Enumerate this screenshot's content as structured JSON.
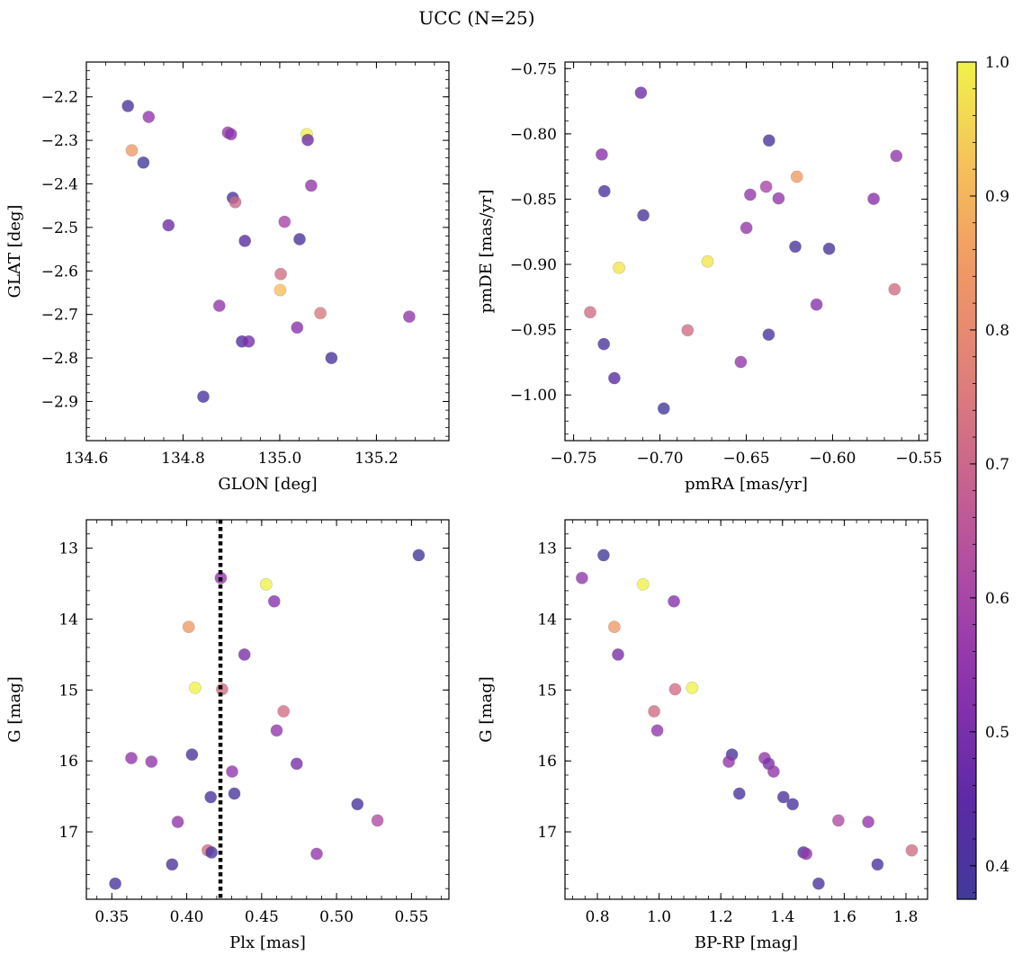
{
  "figure": {
    "suptitle": "UCC (N=25)"
  },
  "colormap": {
    "name": "plasma",
    "range": [
      0.375,
      1.0
    ],
    "ticks": [
      "0.4",
      "0.5",
      "0.6",
      "0.7",
      "0.8",
      "0.9",
      "1.0"
    ],
    "marker_alpha": 0.8
  },
  "chart_data": [
    {
      "type": "scatter",
      "id": "glon-glat",
      "xlabel": "GLON [deg]",
      "ylabel": "GLAT [deg]",
      "xlim": [
        134.6,
        135.35
      ],
      "ylim": [
        -2.99,
        -2.12
      ],
      "y_inverted": false,
      "xticks": [
        134.6,
        134.8,
        135.0,
        135.2
      ],
      "xtick_labels": [
        "134.6",
        "134.8",
        "135.0",
        "135.2"
      ],
      "yticks": [
        -2.2,
        -2.3,
        -2.4,
        -2.5,
        -2.6,
        -2.7,
        -2.8,
        -2.9
      ],
      "ytick_labels": [
        "−2.2",
        "−2.3",
        "−2.4",
        "−2.5",
        "−2.6",
        "−2.7",
        "−2.8",
        "−2.9"
      ],
      "points": [
        {
          "x": 134.686,
          "y": -2.221,
          "c": 0.4
        },
        {
          "x": 134.729,
          "y": -2.246,
          "c": 0.55
        },
        {
          "x": 134.694,
          "y": -2.323,
          "c": 0.85
        },
        {
          "x": 134.718,
          "y": -2.351,
          "c": 0.38
        },
        {
          "x": 134.77,
          "y": -2.495,
          "c": 0.48
        },
        {
          "x": 134.842,
          "y": -2.889,
          "c": 0.4
        },
        {
          "x": 134.875,
          "y": -2.68,
          "c": 0.55
        },
        {
          "x": 134.893,
          "y": -2.282,
          "c": 0.57
        },
        {
          "x": 134.899,
          "y": -2.286,
          "c": 0.53
        },
        {
          "x": 134.903,
          "y": -2.432,
          "c": 0.4
        },
        {
          "x": 134.908,
          "y": -2.442,
          "c": 0.7
        },
        {
          "x": 134.922,
          "y": -2.762,
          "c": 0.42
        },
        {
          "x": 134.928,
          "y": -2.531,
          "c": 0.44
        },
        {
          "x": 134.936,
          "y": -2.762,
          "c": 0.5
        },
        {
          "x": 135.002,
          "y": -2.607,
          "c": 0.72
        },
        {
          "x": 135.001,
          "y": -2.644,
          "c": 0.92
        },
        {
          "x": 135.01,
          "y": -2.487,
          "c": 0.6
        },
        {
          "x": 135.036,
          "y": -2.73,
          "c": 0.53
        },
        {
          "x": 135.041,
          "y": -2.527,
          "c": 0.4
        },
        {
          "x": 135.056,
          "y": -2.286,
          "c": 1.0
        },
        {
          "x": 135.058,
          "y": -2.299,
          "c": 0.48
        },
        {
          "x": 135.065,
          "y": -2.404,
          "c": 0.55
        },
        {
          "x": 135.084,
          "y": -2.697,
          "c": 0.75
        },
        {
          "x": 135.107,
          "y": -2.8,
          "c": 0.4
        },
        {
          "x": 135.268,
          "y": -2.705,
          "c": 0.55
        }
      ]
    },
    {
      "type": "scatter",
      "id": "pm",
      "xlabel": "pmRA [mas/yr]",
      "ylabel": "pmDE [mas/yr]",
      "xlim": [
        -0.755,
        -0.545
      ],
      "ylim": [
        -1.035,
        -0.745
      ],
      "y_inverted": false,
      "xticks": [
        -0.75,
        -0.7,
        -0.65,
        -0.6,
        -0.55
      ],
      "xtick_labels": [
        "−0.75",
        "−0.70",
        "−0.65",
        "−0.60",
        "−0.55"
      ],
      "yticks": [
        -0.75,
        -0.8,
        -0.85,
        -0.9,
        -0.95,
        -1.0
      ],
      "ytick_labels": [
        "−0.75",
        "−0.80",
        "−0.85",
        "−0.90",
        "−0.95",
        "−1.00"
      ],
      "points": [
        {
          "x": -0.711,
          "y": -0.7685,
          "c": 0.48
        },
        {
          "x": -0.7337,
          "y": -0.8158,
          "c": 0.53
        },
        {
          "x": -0.7322,
          "y": -0.8439,
          "c": 0.4
        },
        {
          "x": -0.7096,
          "y": -0.8624,
          "c": 0.4
        },
        {
          "x": -0.7237,
          "y": -0.9026,
          "c": 0.98
        },
        {
          "x": -0.6724,
          "y": -0.8978,
          "c": 0.98
        },
        {
          "x": -0.7404,
          "y": -0.9366,
          "c": 0.72
        },
        {
          "x": -0.7325,
          "y": -0.961,
          "c": 0.4
        },
        {
          "x": -0.7264,
          "y": -0.9871,
          "c": 0.44
        },
        {
          "x": -0.6978,
          "y": -1.0104,
          "c": 0.38
        },
        {
          "x": -0.684,
          "y": -0.9505,
          "c": 0.72
        },
        {
          "x": -0.6532,
          "y": -0.9747,
          "c": 0.55
        },
        {
          "x": -0.6499,
          "y": -0.872,
          "c": 0.55
        },
        {
          "x": -0.6477,
          "y": -0.8466,
          "c": 0.55
        },
        {
          "x": -0.6385,
          "y": -0.8405,
          "c": 0.6
        },
        {
          "x": -0.6368,
          "y": -0.8051,
          "c": 0.4
        },
        {
          "x": -0.637,
          "y": -0.9538,
          "c": 0.4
        },
        {
          "x": -0.6313,
          "y": -0.8494,
          "c": 0.55
        },
        {
          "x": -0.6207,
          "y": -0.8328,
          "c": 0.85
        },
        {
          "x": -0.6216,
          "y": -0.8864,
          "c": 0.4
        },
        {
          "x": -0.6093,
          "y": -0.9308,
          "c": 0.53
        },
        {
          "x": -0.602,
          "y": -0.888,
          "c": 0.4
        },
        {
          "x": -0.5762,
          "y": -0.8498,
          "c": 0.53
        },
        {
          "x": -0.5641,
          "y": -0.9191,
          "c": 0.72
        },
        {
          "x": -0.5631,
          "y": -0.8169,
          "c": 0.55
        }
      ]
    },
    {
      "type": "scatter",
      "id": "plx-g",
      "xlabel": "Plx [mas]",
      "ylabel": "G [mag]",
      "xlim": [
        0.333,
        0.575
      ],
      "ylim": [
        12.6,
        17.95
      ],
      "y_inverted": true,
      "xticks": [
        0.35,
        0.4,
        0.45,
        0.5,
        0.55
      ],
      "xtick_labels": [
        "0.35",
        "0.40",
        "0.45",
        "0.50",
        "0.55"
      ],
      "yticks": [
        13,
        14,
        15,
        16,
        17
      ],
      "ytick_labels": [
        "13",
        "14",
        "15",
        "16",
        "17"
      ],
      "vline": {
        "x": 0.4225,
        "style": "dotted"
      },
      "points": [
        {
          "x": 0.5548,
          "y": 13.1,
          "c": 0.38
        },
        {
          "x": 0.4227,
          "y": 13.42,
          "c": 0.55
        },
        {
          "x": 0.453,
          "y": 13.51,
          "c": 1.0
        },
        {
          "x": 0.4584,
          "y": 13.75,
          "c": 0.53
        },
        {
          "x": 0.4013,
          "y": 14.11,
          "c": 0.85
        },
        {
          "x": 0.4385,
          "y": 14.5,
          "c": 0.5
        },
        {
          "x": 0.4056,
          "y": 14.97,
          "c": 1.0
        },
        {
          "x": 0.4236,
          "y": 14.99,
          "c": 0.72
        },
        {
          "x": 0.4646,
          "y": 15.3,
          "c": 0.72
        },
        {
          "x": 0.46,
          "y": 15.57,
          "c": 0.55
        },
        {
          "x": 0.363,
          "y": 15.96,
          "c": 0.55
        },
        {
          "x": 0.4035,
          "y": 15.91,
          "c": 0.4
        },
        {
          "x": 0.3764,
          "y": 16.01,
          "c": 0.55
        },
        {
          "x": 0.4734,
          "y": 16.04,
          "c": 0.5
        },
        {
          "x": 0.4303,
          "y": 16.15,
          "c": 0.55
        },
        {
          "x": 0.4318,
          "y": 16.46,
          "c": 0.4
        },
        {
          "x": 0.416,
          "y": 16.51,
          "c": 0.4
        },
        {
          "x": 0.5139,
          "y": 16.61,
          "c": 0.4
        },
        {
          "x": 0.394,
          "y": 16.86,
          "c": 0.55
        },
        {
          "x": 0.5273,
          "y": 16.84,
          "c": 0.62
        },
        {
          "x": 0.414,
          "y": 17.26,
          "c": 0.72
        },
        {
          "x": 0.4165,
          "y": 17.29,
          "c": 0.4
        },
        {
          "x": 0.4867,
          "y": 17.31,
          "c": 0.55
        },
        {
          "x": 0.3902,
          "y": 17.46,
          "c": 0.4
        },
        {
          "x": 0.3523,
          "y": 17.73,
          "c": 0.4
        }
      ]
    },
    {
      "type": "scatter",
      "id": "cmd",
      "xlabel": "BP-RP [mag]",
      "ylabel": "G [mag]",
      "xlim": [
        0.695,
        1.87
      ],
      "ylim": [
        12.6,
        17.95
      ],
      "y_inverted": true,
      "xticks": [
        0.8,
        1.0,
        1.2,
        1.4,
        1.6,
        1.8
      ],
      "xtick_labels": [
        "0.8",
        "1.0",
        "1.2",
        "1.4",
        "1.6",
        "1.8"
      ],
      "yticks": [
        13,
        14,
        15,
        16,
        17
      ],
      "ytick_labels": [
        "13",
        "14",
        "15",
        "16",
        "17"
      ],
      "points": [
        {
          "x": 0.82,
          "y": 13.1,
          "c": 0.38
        },
        {
          "x": 0.75,
          "y": 13.42,
          "c": 0.55
        },
        {
          "x": 0.948,
          "y": 13.51,
          "c": 1.0
        },
        {
          "x": 1.048,
          "y": 13.75,
          "c": 0.53
        },
        {
          "x": 0.855,
          "y": 14.11,
          "c": 0.85
        },
        {
          "x": 0.867,
          "y": 14.5,
          "c": 0.5
        },
        {
          "x": 1.107,
          "y": 14.97,
          "c": 1.0
        },
        {
          "x": 1.052,
          "y": 14.99,
          "c": 0.72
        },
        {
          "x": 0.984,
          "y": 15.3,
          "c": 0.72
        },
        {
          "x": 0.994,
          "y": 15.57,
          "c": 0.55
        },
        {
          "x": 1.236,
          "y": 15.91,
          "c": 0.4
        },
        {
          "x": 1.226,
          "y": 16.01,
          "c": 0.55
        },
        {
          "x": 1.342,
          "y": 15.96,
          "c": 0.55
        },
        {
          "x": 1.355,
          "y": 16.04,
          "c": 0.5
        },
        {
          "x": 1.371,
          "y": 16.15,
          "c": 0.55
        },
        {
          "x": 1.26,
          "y": 16.46,
          "c": 0.4
        },
        {
          "x": 1.403,
          "y": 16.51,
          "c": 0.4
        },
        {
          "x": 1.433,
          "y": 16.61,
          "c": 0.4
        },
        {
          "x": 1.581,
          "y": 16.84,
          "c": 0.62
        },
        {
          "x": 1.678,
          "y": 16.86,
          "c": 0.55
        },
        {
          "x": 1.468,
          "y": 17.29,
          "c": 0.4
        },
        {
          "x": 1.477,
          "y": 17.31,
          "c": 0.55
        },
        {
          "x": 1.819,
          "y": 17.26,
          "c": 0.72
        },
        {
          "x": 1.708,
          "y": 17.46,
          "c": 0.4
        },
        {
          "x": 1.517,
          "y": 17.73,
          "c": 0.4
        }
      ]
    }
  ]
}
